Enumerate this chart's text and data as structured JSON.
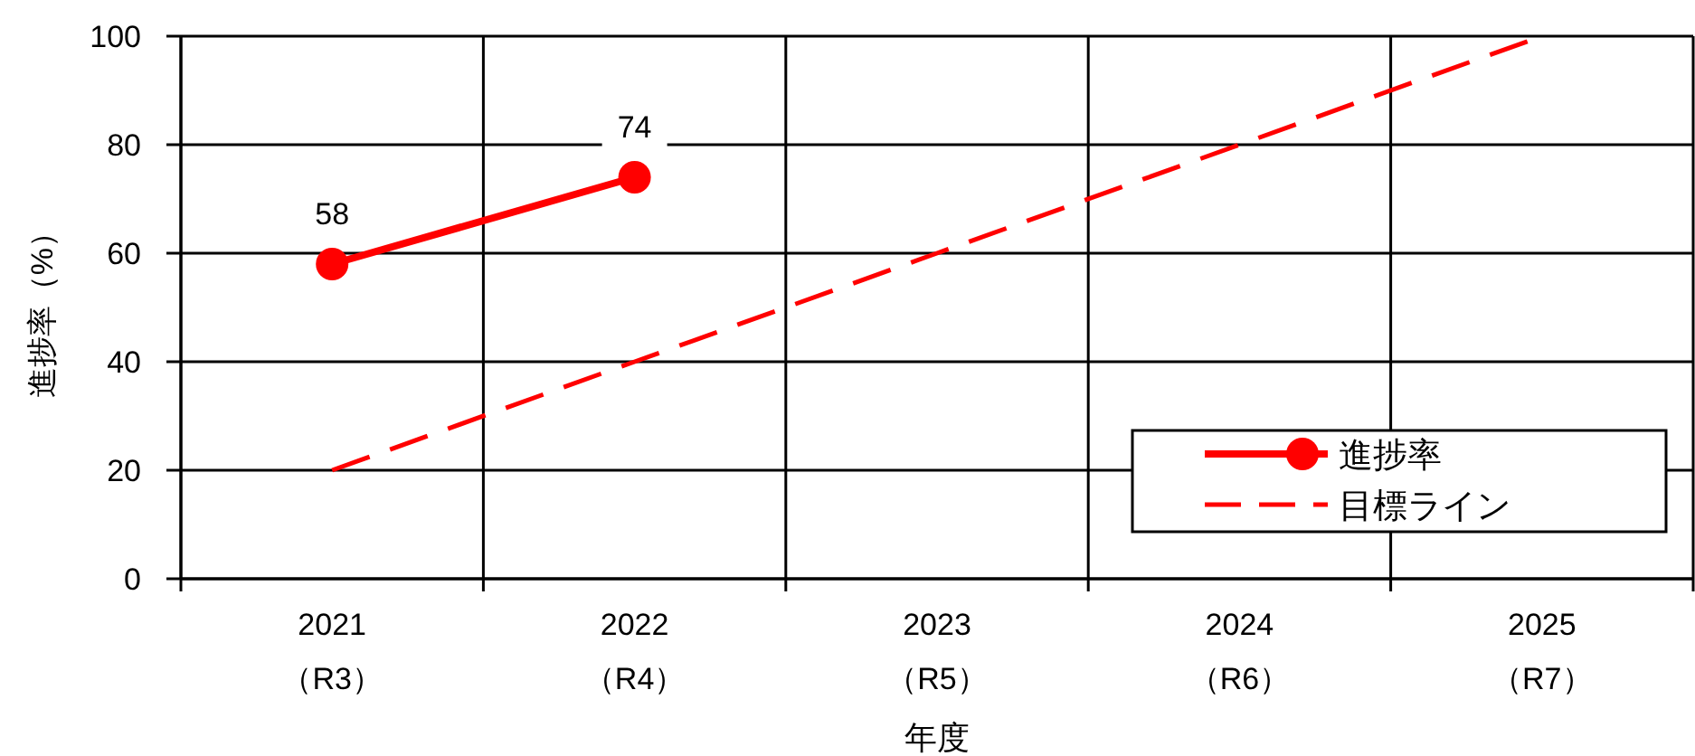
{
  "chart_data": {
    "type": "line",
    "xlabel": "年度",
    "ylabel": "進捗率（%）",
    "categories": [
      "2021\n（R3）",
      "2022\n（R4）",
      "2023\n（R5）",
      "2024\n（R6）",
      "2025\n（R7）"
    ],
    "series": [
      {
        "name": "進捗率",
        "color": "#ff0000",
        "values": [
          58,
          74,
          null,
          null,
          null
        ],
        "marker": "circle",
        "line_style": "solid",
        "value_labels": [
          "58",
          "74",
          null,
          null,
          null
        ]
      },
      {
        "name": "目標ライン",
        "color": "#ff0000",
        "values": [
          20,
          40,
          60,
          80,
          100
        ],
        "marker": "none",
        "line_style": "dashed"
      }
    ],
    "ylim": [
      0,
      100
    ],
    "yticks": [
      0,
      20,
      40,
      60,
      80,
      100
    ],
    "grid": true,
    "legend": "bottom right"
  }
}
